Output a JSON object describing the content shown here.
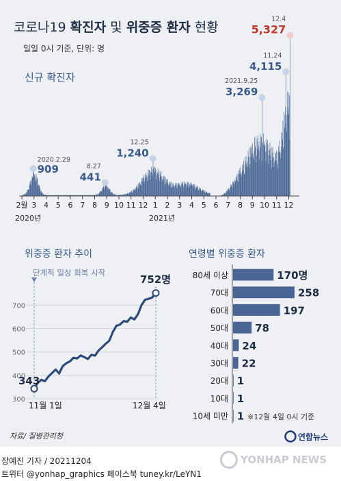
{
  "title": {
    "plain": "코로나19",
    "bold1": "확진자",
    "mid": "및",
    "bold2": "위중증 환자",
    "end": "현황"
  },
  "subtitle": "일일 0시 기준, 단위: 명",
  "colors": {
    "accent": "#3a5a8c",
    "highlight": "#c0392b",
    "panel_bg": "#eef0f3",
    "bar": "#4a6696",
    "bar_light": "#7d96be"
  },
  "chart_data": [
    {
      "type": "bar",
      "title": "신규 확진자",
      "x_labels": [
        "2월",
        "3",
        "4",
        "5",
        "6",
        "7",
        "8",
        "9",
        "10",
        "11",
        "12",
        "1",
        "2",
        "3",
        "4",
        "5",
        "6",
        "7",
        "8",
        "9",
        "10",
        "11",
        "12"
      ],
      "x_year_labels": [
        "2020년",
        "2021년"
      ],
      "annotations": [
        {
          "date": "2020.2.29",
          "label": "2020.2.29",
          "value": 909,
          "value_label": "909"
        },
        {
          "date": "2020.8.27",
          "label": "8.27",
          "value": 441,
          "value_label": "441"
        },
        {
          "date": "2020.12.25",
          "label": "12.25",
          "value": 1240,
          "value_label": "1,240"
        },
        {
          "date": "2021.9.25",
          "label": "2021.9.25",
          "value": 3269,
          "value_label": "3,269"
        },
        {
          "date": "2021.11.24",
          "label": "11.24",
          "value": 4115,
          "value_label": "4,115"
        },
        {
          "date": "2021.12.4",
          "label": "12.4",
          "value": 5327,
          "value_label": "5,327"
        }
      ],
      "ylim": [
        0,
        5400
      ]
    },
    {
      "type": "line",
      "title": "위중증 환자 추이",
      "annotation": "단계적 일상 회복 시작",
      "x_labels": [
        "11월 1일",
        "12월 4일"
      ],
      "y_ticks": [
        300,
        400,
        500,
        600,
        700
      ],
      "ylim": [
        300,
        780
      ],
      "start": {
        "value": 343,
        "label": "343"
      },
      "end": {
        "value": 752,
        "label": "752명"
      },
      "values": [
        343,
        368,
        381,
        375,
        395,
        410,
        425,
        408,
        440,
        452,
        460,
        475,
        472,
        485,
        478,
        470,
        488,
        484,
        506,
        520,
        535,
        548,
        586,
        612,
        617,
        632,
        629,
        647,
        639,
        661,
        700,
        723,
        727,
        733,
        752
      ]
    },
    {
      "type": "bar",
      "orientation": "horizontal",
      "title": "연령별 위중증 환자",
      "note": "※12월 4일 0시 기준",
      "categories": [
        "80세 이상",
        "70대",
        "60대",
        "50대",
        "40대",
        "30대",
        "20대",
        "10대",
        "10세 미만"
      ],
      "values": [
        170,
        258,
        197,
        78,
        24,
        22,
        1,
        1,
        1
      ],
      "value_labels": [
        "170명",
        "258",
        "197",
        "78",
        "24",
        "22",
        "1",
        "1",
        "1"
      ]
    }
  ],
  "source": "자료/ 질병관리청",
  "logo_text": "연합뉴스",
  "footer": {
    "byline": "장예진 기자 / 20211204",
    "social": "트위터 @yonhap_graphics  페이스북 tuney.kr/LeYN1",
    "watermark": "YONHAP NEWS"
  }
}
